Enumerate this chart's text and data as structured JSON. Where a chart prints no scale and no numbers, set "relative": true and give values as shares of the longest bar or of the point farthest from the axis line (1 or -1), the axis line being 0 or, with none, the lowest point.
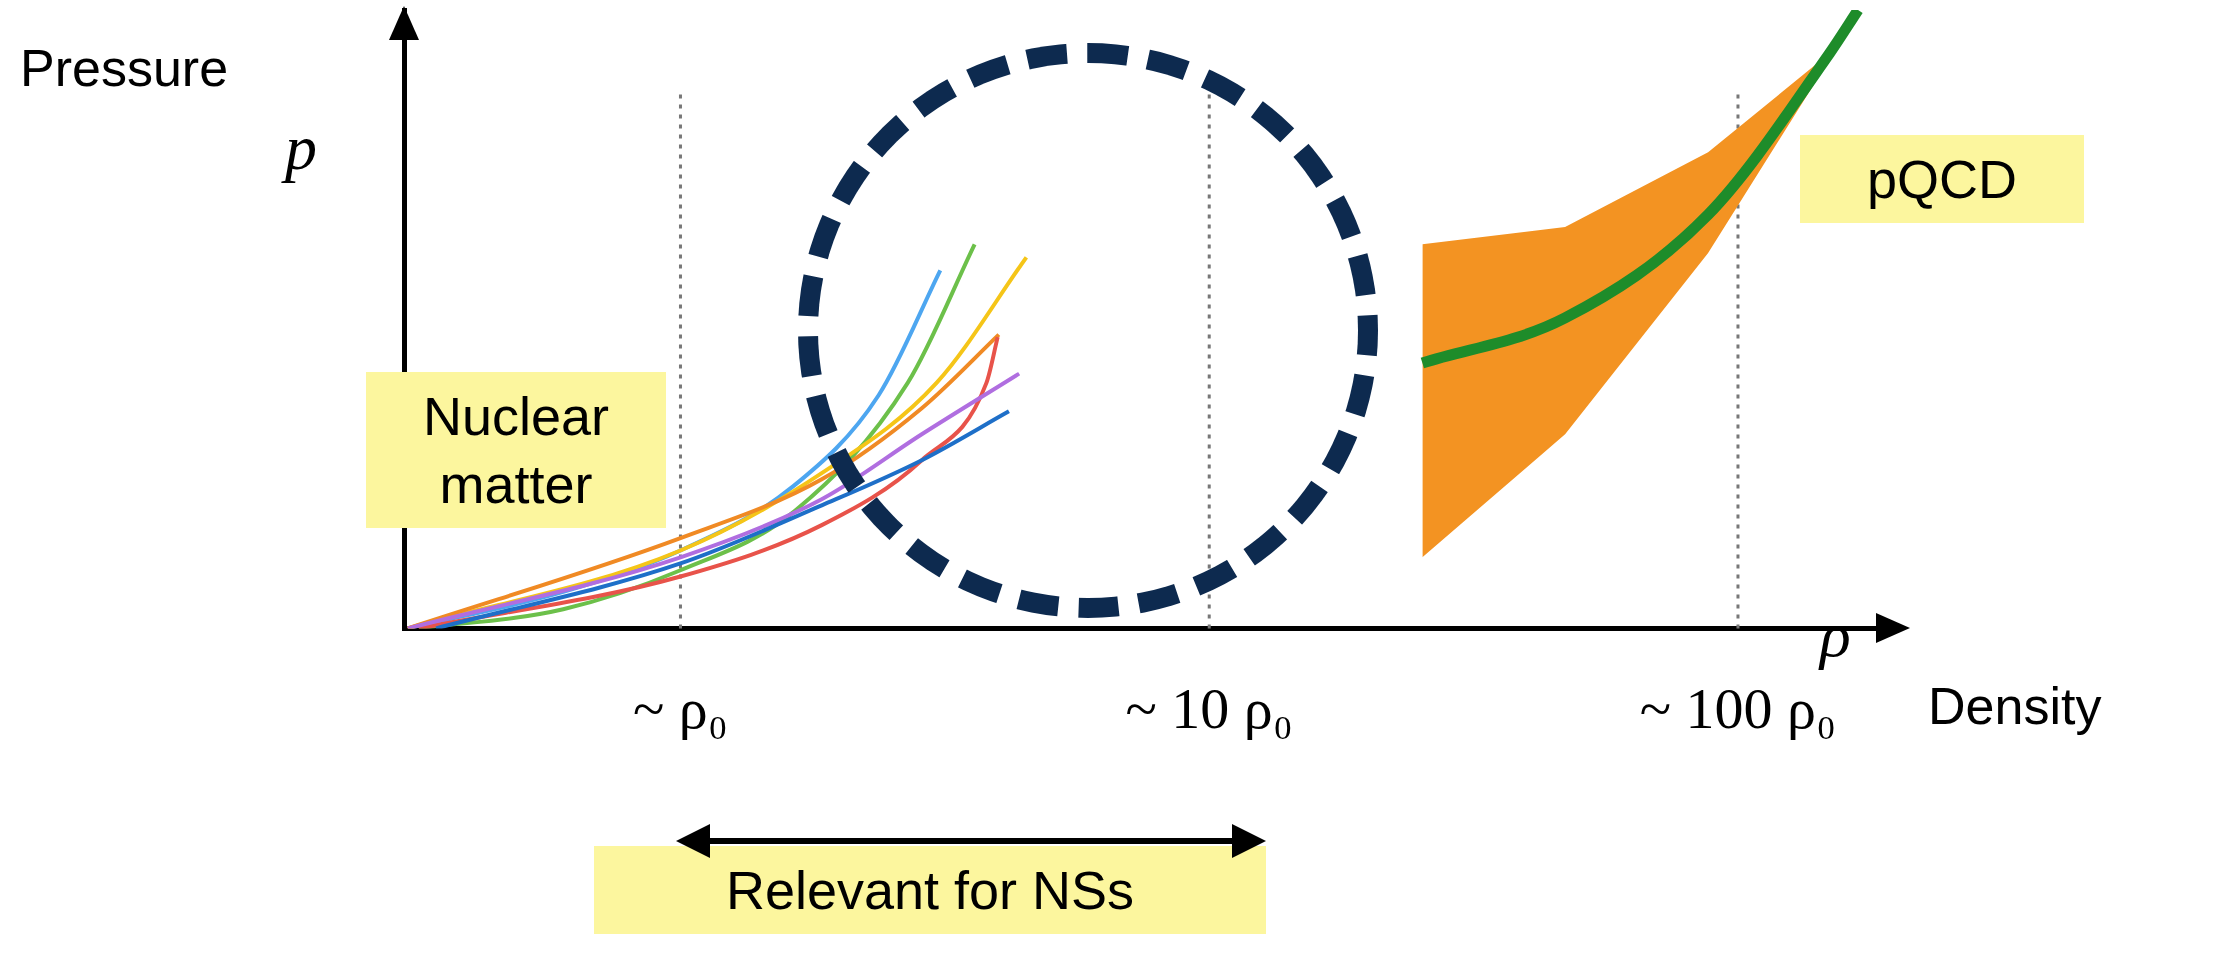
{
  "chart_data": {
    "type": "line",
    "xlabel": "ρ Density",
    "ylabel": "Pressure p",
    "relative": true,
    "log": "x",
    "grid": "x",
    "legend": false,
    "xlim": [
      0.305,
      184
    ],
    "xticks": [
      {
        "value": 1,
        "label": "~ ρ₀"
      },
      {
        "value": 10,
        "label": "~ 10 ρ₀"
      },
      {
        "value": 100,
        "label": "~ 100 ρ₀"
      }
    ],
    "annotations": [
      "Nuclear matter",
      "pQCD",
      "Relevant for NSs"
    ],
    "series": [
      {
        "color": "#4da6f0",
        "x": [
          0.305,
          0.6,
          1,
          1.635,
          2.37,
          3.1
        ],
        "values": [
          0,
          0.059,
          0.126,
          0.23,
          0.377,
          0.579
        ]
      },
      {
        "color": "#6cc04a",
        "x": [
          0.32,
          0.6,
          1,
          1.635,
          2.69,
          3.6
        ],
        "values": [
          0,
          0.031,
          0.094,
          0.188,
          0.397,
          0.621
        ]
      },
      {
        "color": "#f5c518",
        "x": [
          0.305,
          1,
          1.85,
          3.05,
          4.51
        ],
        "values": [
          0,
          0.126,
          0.251,
          0.397,
          0.6
        ]
      },
      {
        "color": "#f08a24",
        "x": [
          0.305,
          1,
          1.85,
          2.86,
          4.0
        ],
        "values": [
          0,
          0.146,
          0.241,
          0.356,
          0.475
        ]
      },
      {
        "color": "#e8534a",
        "x": [
          0.32,
          1,
          1.85,
          2.86,
          3.79,
          3.98
        ],
        "values": [
          0,
          0.084,
          0.167,
          0.272,
          0.397,
          0.471
        ]
      },
      {
        "color": "#b06ee0",
        "x": [
          0.305,
          1,
          1.85,
          2.86,
          4.37
        ],
        "values": [
          0,
          0.115,
          0.209,
          0.314,
          0.412
        ]
      },
      {
        "color": "#1e6fc8",
        "x": [
          0.345,
          1,
          1.85,
          2.86,
          4.18
        ],
        "values": [
          0,
          0.105,
          0.199,
          0.272,
          0.351
        ]
      },
      {
        "color": "#1e8c2a",
        "x": [
          25.3,
          47.1,
          87.8,
          149,
          168.7
        ],
        "values": [
          0.429,
          0.502,
          0.669,
          0.93,
          1
        ],
        "lower": [
          0.115,
          0.314,
          0.607,
          0.92,
          null
        ],
        "upper": [
          0.621,
          0.649,
          0.77,
          0.93,
          null
        ]
      }
    ]
  }
}
